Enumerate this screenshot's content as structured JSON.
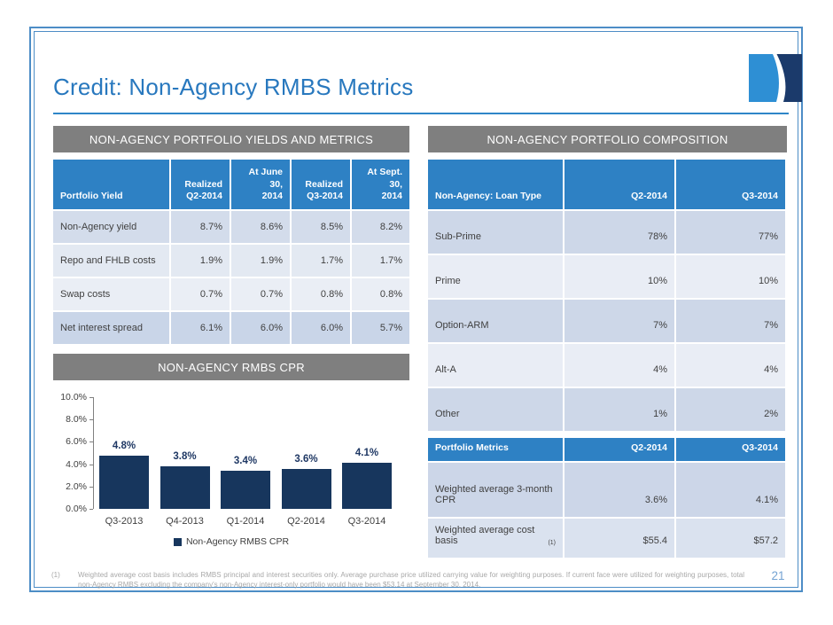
{
  "slide": {
    "title": "Credit: Non-Agency RMBS Metrics",
    "page_number": "21",
    "footnote_marker": "(1)",
    "footnote_text": "Weighted average cost basis includes RMBS principal and interest securities only.  Average purchase price utilized carrying value for weighting purposes.  If current face were utilized for weighting purposes, total non-Agency RMBS excluding the company's non-Agency interest-only portfolio would have been $53.14 at September 30, 2014."
  },
  "colors": {
    "accent_blue": "#2878BE",
    "table_header_blue": "#2E81C4",
    "section_bar_gray": "#7F7F7F",
    "bar_navy": "#17365D",
    "row_dark": "#CDD7E8",
    "row_light": "#E9EDF5",
    "border_blue": "#4D8DC6"
  },
  "left_section": {
    "header": "NON-AGENCY PORTFOLIO YIELDS AND METRICS",
    "yields_table": {
      "columns": [
        [
          "Portfolio Yield"
        ],
        [
          "Realized",
          "Q2-2014"
        ],
        [
          "At June 30,",
          "2014"
        ],
        [
          "Realized",
          "Q3-2014"
        ],
        [
          "At Sept. 30,",
          "2014"
        ]
      ],
      "rows": [
        {
          "label": "Non-Agency yield",
          "values": [
            "8.7%",
            "8.6%",
            "8.5%",
            "8.2%"
          ]
        },
        {
          "label": "Repo and FHLB costs",
          "values": [
            "1.9%",
            "1.9%",
            "1.7%",
            "1.7%"
          ]
        },
        {
          "label": "Swap costs",
          "values": [
            "0.7%",
            "0.7%",
            "0.8%",
            "0.8%"
          ]
        },
        {
          "label": "Net interest spread",
          "values": [
            "6.1%",
            "6.0%",
            "6.0%",
            "5.7%"
          ]
        }
      ]
    },
    "chart_header": "NON-AGENCY RMBS CPR"
  },
  "chart_data": {
    "type": "bar",
    "title": "NON-AGENCY RMBS CPR",
    "categories": [
      "Q3-2013",
      "Q4-2013",
      "Q1-2014",
      "Q2-2014",
      "Q3-2014"
    ],
    "values": [
      4.8,
      3.8,
      3.4,
      3.6,
      4.1
    ],
    "bar_labels": [
      "4.8%",
      "3.8%",
      "3.4%",
      "3.6%",
      "4.1%"
    ],
    "ytick_values": [
      10,
      8,
      6,
      4,
      2,
      0
    ],
    "ytick_labels": [
      "10.0%",
      "8.0%",
      "6.0%",
      "4.0%",
      "2.0%",
      "0.0%"
    ],
    "ylim": [
      0,
      10
    ],
    "legend": "Non-Agency RMBS CPR",
    "bar_color": "#17365D",
    "grid": false,
    "legend_position": "bottom"
  },
  "right_section": {
    "header": "NON-AGENCY PORTFOLIO COMPOSITION",
    "loan_table": {
      "columns": [
        "Non-Agency: Loan Type",
        "Q2-2014",
        "Q3-2014"
      ],
      "rows": [
        {
          "label": "Sub-Prime",
          "values": [
            "78%",
            "77%"
          ]
        },
        {
          "label": "Prime",
          "values": [
            "10%",
            "10%"
          ]
        },
        {
          "label": "Option-ARM",
          "values": [
            "7%",
            "7%"
          ]
        },
        {
          "label": "Alt-A",
          "values": [
            "4%",
            "4%"
          ]
        },
        {
          "label": "Other",
          "values": [
            "1%",
            "2%"
          ]
        }
      ]
    },
    "metrics_table": {
      "columns": [
        "Portfolio Metrics",
        "Q2-2014",
        "Q3-2014"
      ],
      "rows": [
        {
          "label": "Weighted average 3-month CPR",
          "values": [
            "3.6%",
            "4.1%"
          ]
        },
        {
          "label": "Weighted average cost basis",
          "sup": "(1)",
          "values": [
            "$55.4",
            "$57.2"
          ]
        }
      ]
    }
  }
}
